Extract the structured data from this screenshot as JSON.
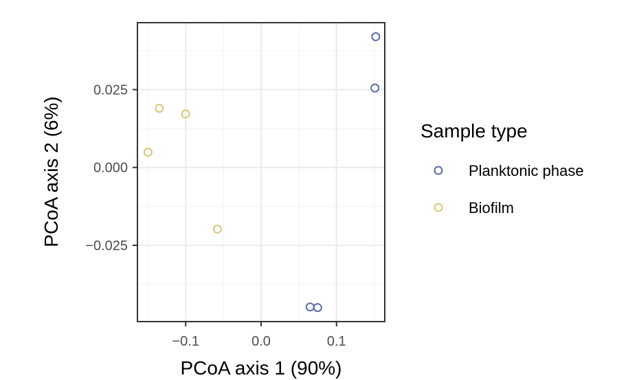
{
  "chart_data": {
    "type": "scatter",
    "xlabel": "PCoA axis 1 (90%)",
    "ylabel": "PCoA axis 2 (6%)",
    "xlim": [
      -0.164,
      0.164
    ],
    "ylim": [
      -0.0495,
      0.0465
    ],
    "xticks": [
      {
        "value": -0.1,
        "label": "−0.1"
      },
      {
        "value": 0.0,
        "label": "0.0"
      },
      {
        "value": 0.1,
        "label": "0.1"
      }
    ],
    "yticks": [
      {
        "value": -0.025,
        "label": "−0.025"
      },
      {
        "value": 0.0,
        "label": "0.000"
      },
      {
        "value": 0.025,
        "label": "0.025"
      }
    ],
    "grid": true,
    "legend": {
      "title": "Sample type",
      "position": "right"
    },
    "series": [
      {
        "name": "Planktonic phase",
        "color": "#5b6aa8",
        "marker": "open-circle",
        "points": [
          {
            "x": 0.152,
            "y": 0.042
          },
          {
            "x": 0.151,
            "y": 0.0255
          },
          {
            "x": 0.065,
            "y": -0.0448
          },
          {
            "x": 0.075,
            "y": -0.045
          }
        ]
      },
      {
        "name": "Biofilm",
        "color": "#d9c57a",
        "marker": "open-circle",
        "points": [
          {
            "x": -0.135,
            "y": 0.019
          },
          {
            "x": -0.1,
            "y": 0.0172
          },
          {
            "x": -0.15,
            "y": 0.0049
          },
          {
            "x": -0.058,
            "y": -0.0198
          }
        ]
      }
    ]
  }
}
